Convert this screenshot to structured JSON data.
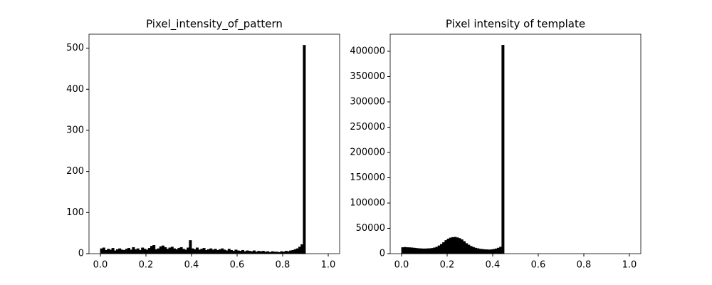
{
  "chart_data": [
    {
      "type": "histogram",
      "title": "Pixel_intensity_of_pattern",
      "bins": [
        0,
        0.01,
        0.02,
        0.03,
        0.04,
        0.05,
        0.06,
        0.07,
        0.08,
        0.09,
        0.1,
        0.11,
        0.12,
        0.13,
        0.14,
        0.15,
        0.16,
        0.17,
        0.18,
        0.19,
        0.2,
        0.21,
        0.22,
        0.23,
        0.24,
        0.25,
        0.26,
        0.27,
        0.28,
        0.29,
        0.3,
        0.31,
        0.32,
        0.33,
        0.34,
        0.35,
        0.36,
        0.37,
        0.38,
        0.39,
        0.4,
        0.41,
        0.42,
        0.43,
        0.44,
        0.45,
        0.46,
        0.47,
        0.48,
        0.49,
        0.5,
        0.51,
        0.52,
        0.53,
        0.54,
        0.55,
        0.56,
        0.57,
        0.58,
        0.59,
        0.6,
        0.61,
        0.62,
        0.63,
        0.64,
        0.65,
        0.66,
        0.67,
        0.68,
        0.69,
        0.7,
        0.71,
        0.72,
        0.73,
        0.74,
        0.75,
        0.76,
        0.77,
        0.78,
        0.79,
        0.8,
        0.81,
        0.82,
        0.83,
        0.84,
        0.85,
        0.86,
        0.87,
        0.88,
        0.89,
        0.9,
        0.91,
        0.92,
        0.93,
        0.94,
        0.95,
        0.96,
        0.97,
        0.98,
        0.99,
        1
      ],
      "counts": [
        12,
        14,
        8,
        11,
        9,
        13,
        7,
        10,
        12,
        9,
        8,
        11,
        13,
        9,
        15,
        10,
        12,
        8,
        14,
        11,
        9,
        13,
        18,
        20,
        10,
        12,
        17,
        19,
        15,
        11,
        14,
        16,
        12,
        10,
        13,
        15,
        11,
        9,
        14,
        32,
        12,
        10,
        14,
        9,
        11,
        13,
        8,
        10,
        12,
        9,
        11,
        8,
        10,
        12,
        9,
        7,
        11,
        8,
        6,
        9,
        7,
        6,
        8,
        5,
        7,
        6,
        5,
        7,
        4,
        6,
        5,
        6,
        4,
        5,
        3,
        5,
        4,
        4,
        3,
        5,
        4,
        6,
        5,
        7,
        8,
        10,
        12,
        16,
        22,
        507,
        0,
        0,
        0,
        0,
        0,
        0,
        0,
        0,
        0,
        0
      ],
      "color": "#000000",
      "xlim": [
        -0.05,
        1.05
      ],
      "xticks": [
        {
          "value": 0,
          "label": "0.0"
        },
        {
          "value": 0.2,
          "label": "0.2"
        },
        {
          "value": 0.4,
          "label": "0.4"
        },
        {
          "value": 0.6,
          "label": "0.6"
        },
        {
          "value": 0.8,
          "label": "0.8"
        },
        {
          "value": 1,
          "label": "1.0"
        }
      ],
      "ylim": [
        0,
        534
      ],
      "yticks": [
        0,
        100,
        200,
        300,
        400,
        500
      ]
    },
    {
      "type": "histogram",
      "title": "Pixel intensity of template",
      "bins": [
        0,
        0.01,
        0.02,
        0.03,
        0.04,
        0.05,
        0.06,
        0.07,
        0.08,
        0.09,
        0.1,
        0.11,
        0.12,
        0.13,
        0.14,
        0.15,
        0.16,
        0.17,
        0.18,
        0.19,
        0.2,
        0.21,
        0.22,
        0.23,
        0.24,
        0.25,
        0.26,
        0.27,
        0.28,
        0.29,
        0.3,
        0.31,
        0.32,
        0.33,
        0.34,
        0.35,
        0.36,
        0.37,
        0.38,
        0.39,
        0.4,
        0.41,
        0.42,
        0.43,
        0.44,
        0.45,
        0.46,
        0.47,
        0.48,
        0.49,
        0.5,
        0.51,
        0.52,
        0.53,
        0.54,
        0.55,
        0.56,
        0.57,
        0.58,
        0.59,
        0.6,
        0.61,
        0.62,
        0.63,
        0.64,
        0.65,
        0.66,
        0.67,
        0.68,
        0.69,
        0.7,
        0.71,
        0.72,
        0.73,
        0.74,
        0.75,
        0.76,
        0.77,
        0.78,
        0.79,
        0.8,
        0.81,
        0.82,
        0.83,
        0.84,
        0.85,
        0.86,
        0.87,
        0.88,
        0.89,
        0.9,
        0.91,
        0.92,
        0.93,
        0.94,
        0.95,
        0.96,
        0.97,
        0.98,
        0.99,
        1
      ],
      "counts": [
        12000,
        12500,
        12000,
        11800,
        11500,
        11000,
        10500,
        10000,
        9800,
        9500,
        9500,
        9800,
        10000,
        10500,
        11500,
        13000,
        15500,
        18500,
        22000,
        26000,
        29000,
        31000,
        32000,
        32500,
        31500,
        30000,
        27500,
        24000,
        20000,
        17000,
        14500,
        12500,
        11000,
        10000,
        9000,
        8500,
        8000,
        7800,
        7500,
        7800,
        8500,
        9500,
        11000,
        13000,
        412000,
        0,
        0,
        0,
        0,
        0,
        0,
        0,
        0,
        0,
        0,
        0,
        0,
        0,
        0,
        0,
        0,
        0,
        0,
        0,
        0,
        0,
        0,
        0,
        0,
        0,
        0,
        0,
        0,
        0,
        0,
        0,
        0,
        0,
        0,
        0,
        0,
        0,
        0,
        0,
        0,
        0,
        0,
        0,
        0,
        0,
        0,
        0,
        0,
        0,
        0,
        0,
        0,
        0,
        0,
        0
      ],
      "color": "#000000",
      "xlim": [
        -0.05,
        1.05
      ],
      "xticks": [
        {
          "value": 0,
          "label": "0.0"
        },
        {
          "value": 0.2,
          "label": "0.2"
        },
        {
          "value": 0.4,
          "label": "0.4"
        },
        {
          "value": 0.6,
          "label": "0.6"
        },
        {
          "value": 0.8,
          "label": "0.8"
        },
        {
          "value": 1,
          "label": "1.0"
        }
      ],
      "ylim": [
        0,
        433800
      ],
      "yticks": [
        0,
        50000,
        100000,
        150000,
        200000,
        250000,
        300000,
        350000,
        400000
      ]
    }
  ]
}
